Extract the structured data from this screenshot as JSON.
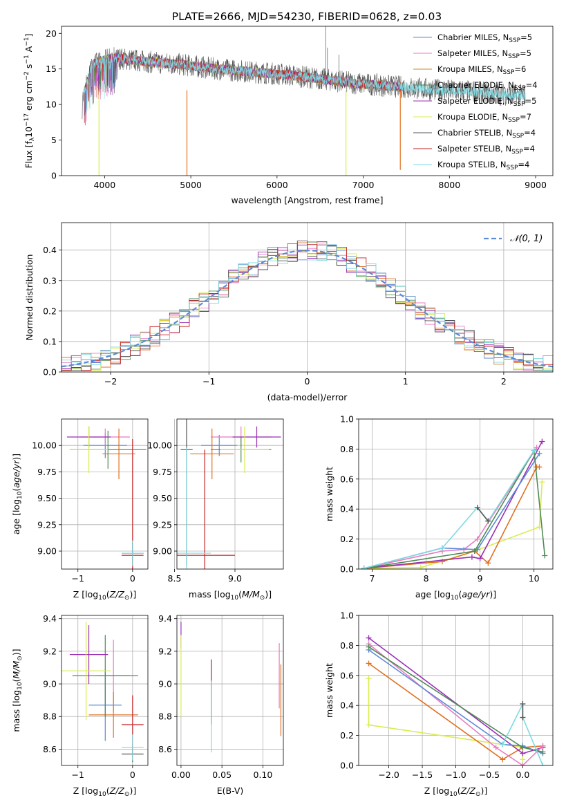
{
  "figure_title": "PLATE=2666, MJD=54230, FIBERID=0628, z=0.03",
  "colors": {
    "chabrier_miles": "#5b8ad6",
    "salpeter_miles": "#e87bc1",
    "kroupa_miles": "#c98a2a",
    "chabrier_elodie": "#4f8a56",
    "salpeter_elodie": "#9a2fb5",
    "kroupa_elodie": "#d9ec4e",
    "chabrier_stelib": "#555555",
    "salpeter_stelib": "#c61f1f",
    "kroupa_stelib": "#7fd9e0",
    "orange": "#e07020",
    "grid": "#b0b0b0"
  },
  "chart_data": [
    {
      "id": "spectrum",
      "type": "line",
      "title": "PLATE=2666, MJD=54230, FIBERID=0628, z=0.03",
      "xlabel": "wavelength [Angstrom, rest frame]",
      "ylabel": "Flux [f",
      "ylabel_full": "Flux [fλ10⁻¹⁷ erg cm⁻² s⁻¹ A⁻¹]",
      "xlim": [
        3500,
        9200
      ],
      "ylim": [
        0,
        21
      ],
      "xticks": [
        4000,
        5000,
        6000,
        7000,
        8000,
        9000
      ],
      "yticks": [
        0,
        5,
        10,
        15,
        20
      ],
      "grid": false,
      "legend_position": "top-right",
      "legend": [
        {
          "name": "Chabrier MILES, N",
          "sub": "SSP",
          "val": "=5",
          "color": "#5b8ad6"
        },
        {
          "name": "Salpeter MILES, N",
          "sub": "SSP",
          "val": "=5",
          "color": "#e87bc1"
        },
        {
          "name": "Kroupa MILES, N",
          "sub": "SSP",
          "val": "=6",
          "color": "#c98a2a"
        },
        {
          "name": "Chabrier ELODIE, N",
          "sub": "SSP",
          "val": "=4",
          "color": "#4f8a56"
        },
        {
          "name": "Salpeter ELODIE, N",
          "sub": "SSP",
          "val": "=5",
          "color": "#9a2fb5"
        },
        {
          "name": "Kroupa ELODIE, N",
          "sub": "SSP",
          "val": "=7",
          "color": "#d9ec4e"
        },
        {
          "name": "Chabrier STELIB, N",
          "sub": "SSP",
          "val": "=4",
          "color": "#555555"
        },
        {
          "name": "Salpeter STELIB, N",
          "sub": "SSP",
          "val": "=4",
          "color": "#c61f1f"
        },
        {
          "name": "Kroupa STELIB, N",
          "sub": "SSP",
          "val": "=4",
          "color": "#7fd9e0"
        }
      ],
      "series_envelope": {
        "x": [
          3750,
          3850,
          3950,
          4050,
          4150,
          4300,
          4500,
          4700,
          4900,
          5100,
          5300,
          5500,
          5700,
          5900,
          6100,
          6300,
          6500,
          6700,
          6900,
          7100,
          7300,
          7500,
          7700,
          7900,
          8100,
          8300,
          8500,
          8700,
          8900,
          9000
        ],
        "y": [
          11.0,
          15.5,
          16.0,
          16.5,
          16.5,
          16.3,
          16.0,
          15.8,
          15.6,
          15.3,
          15.0,
          14.8,
          14.6,
          14.4,
          14.2,
          13.9,
          13.6,
          13.3,
          13.0,
          12.8,
          12.6,
          12.4,
          12.2,
          12.0,
          11.9,
          11.8,
          11.5,
          11.4,
          11.3,
          11.2
        ]
      },
      "dips": [
        {
          "x": 3935,
          "y": 0,
          "color": "#d9ec4e"
        },
        {
          "x": 4955,
          "y": 0,
          "color": "#e07020"
        },
        {
          "x": 6800,
          "y": 0,
          "color": "#d9ec4e"
        },
        {
          "x": 7430,
          "y": 0.8,
          "color": "#e07020"
        }
      ]
    },
    {
      "id": "residuals",
      "type": "line",
      "xlabel": "(data-model)/error",
      "ylabel": "Normed distribution",
      "xlim": [
        -2.5,
        2.5
      ],
      "ylim": [
        0,
        0.49
      ],
      "xticks": [
        -2,
        -1,
        0,
        1,
        2
      ],
      "yticks": [
        0.0,
        0.1,
        0.2,
        0.3,
        0.4
      ],
      "grid": true,
      "legend_position": "top-right",
      "legend": [
        {
          "name": "𝒩(0, 1)",
          "color": "#5b8ad6",
          "dashed": true
        }
      ],
      "normal_pdf": {
        "mu": 0,
        "sigma": 1
      }
    },
    {
      "id": "age_vs_Z",
      "type": "scatter",
      "xlabel": "Z [log",
      "xlabel_full": "Z [log10(Z/Z⊙)]",
      "ylabel": "age  [log",
      "ylabel_full": "age  [log10(age/yr)]",
      "xlim": [
        -1.3,
        0.28
      ],
      "ylim": [
        8.83,
        10.25
      ],
      "xticks": [
        -1,
        0
      ],
      "yticks": [
        9.0,
        9.25,
        9.5,
        9.75,
        10.0
      ],
      "grid": true,
      "points": [
        {
          "x": -0.5,
          "y": 10.0,
          "xerr": 0.4,
          "yerr": 0.12,
          "color": "#5b8ad6"
        },
        {
          "x": -0.5,
          "y": 10.08,
          "xerr": 0.45,
          "yerr": 0.08,
          "color": "#e87bc1"
        },
        {
          "x": -0.25,
          "y": 9.92,
          "xerr": 0.3,
          "yerr": 0.24,
          "color": "#e07020"
        },
        {
          "x": -0.45,
          "y": 9.96,
          "xerr": 0.7,
          "yerr": 0.18,
          "color": "#4f8a56"
        },
        {
          "x": -0.8,
          "y": 10.08,
          "xerr": 0.4,
          "yerr": 0.1,
          "color": "#9a2fb5"
        },
        {
          "x": -0.8,
          "y": 9.96,
          "xerr": 0.35,
          "yerr": 0.22,
          "color": "#d9ec4e"
        },
        {
          "x": 0.0,
          "y": 8.98,
          "xerr": 0.2,
          "yerr": 0.1,
          "color": "#555555"
        },
        {
          "x": 0.0,
          "y": 8.96,
          "xerr": 0.2,
          "yerr": 1.1,
          "color": "#c61f1f"
        },
        {
          "x": 0.0,
          "y": 8.98,
          "xerr": 0.2,
          "yerr": 0.12,
          "color": "#7fd9e0"
        }
      ]
    },
    {
      "id": "age_vs_mass",
      "type": "scatter",
      "xlabel": "mass [log",
      "xlabel_full": "mass [log10(M/M⊙)]",
      "xlim": [
        8.52,
        9.4
      ],
      "ylim": [
        8.83,
        10.25
      ],
      "xticks": [
        8.5,
        9.0
      ],
      "yticks": [
        9.0,
        9.25,
        9.5,
        9.75,
        10.0
      ],
      "grid": true,
      "points": [
        {
          "x": 8.87,
          "y": 10.0,
          "xerr": 0.15,
          "yerr": 0.1,
          "color": "#5b8ad6"
        },
        {
          "x": 9.05,
          "y": 10.08,
          "xerr": 0.25,
          "yerr": 0.1,
          "color": "#e87bc1"
        },
        {
          "x": 8.81,
          "y": 9.92,
          "xerr": 0.18,
          "yerr": 0.24,
          "color": "#e07020"
        },
        {
          "x": 9.05,
          "y": 9.96,
          "xerr": 0.25,
          "yerr": 0.12,
          "color": "#4f8a56"
        },
        {
          "x": 9.18,
          "y": 10.08,
          "xerr": 0.2,
          "yerr": 0.1,
          "color": "#9a2fb5"
        },
        {
          "x": 9.08,
          "y": 9.96,
          "xerr": 0.2,
          "yerr": 0.22,
          "color": "#d9ec4e"
        },
        {
          "x": 8.6,
          "y": 9.96,
          "xerr": 0.05,
          "yerr": 1.1,
          "color": "#555555"
        },
        {
          "x": 8.75,
          "y": 8.96,
          "xerr": 0.25,
          "yerr": 1.0,
          "color": "#c61f1f"
        },
        {
          "x": 8.6,
          "y": 8.98,
          "xerr": 0.2,
          "yerr": 1.0,
          "color": "#7fd9e0"
        }
      ]
    },
    {
      "id": "massweight_vs_age",
      "type": "line",
      "xlabel": "age  [log",
      "xlabel_full": "age  [log10(age/yr)]",
      "ylabel": "mass weight",
      "xlim": [
        6.75,
        10.35
      ],
      "ylim": [
        0,
        1.0
      ],
      "xticks": [
        7,
        8,
        9,
        10
      ],
      "yticks": [
        0.0,
        0.2,
        0.4,
        0.6,
        0.8,
        1.0
      ],
      "grid": true,
      "series": [
        {
          "color": "#d9ec4e",
          "x": [
            6.85,
            7.9,
            8.9,
            10.1,
            10.15
          ],
          "y": [
            0.005,
            0.01,
            0.12,
            0.28,
            0.58
          ]
        },
        {
          "color": "#e07020",
          "x": [
            6.85,
            8.3,
            8.9,
            9.15,
            10.05,
            10.1
          ],
          "y": [
            0.005,
            0.05,
            0.12,
            0.04,
            0.68,
            0.68
          ]
        },
        {
          "color": "#9a2fb5",
          "x": [
            6.85,
            8.85,
            9.0,
            10.15
          ],
          "y": [
            0.005,
            0.08,
            0.07,
            0.85
          ]
        },
        {
          "color": "#e87bc1",
          "x": [
            6.85,
            8.3,
            8.7,
            8.95,
            10.05
          ],
          "y": [
            0.005,
            0.12,
            0.13,
            0.2,
            0.81
          ]
        },
        {
          "color": "#5b8ad6",
          "x": [
            6.85,
            8.3,
            8.95,
            10.1
          ],
          "y": [
            0.005,
            0.14,
            0.13,
            0.77
          ]
        },
        {
          "color": "#4f8a56",
          "x": [
            6.85,
            8.9,
            10.0,
            10.2
          ],
          "y": [
            0.005,
            0.12,
            0.79,
            0.09
          ]
        },
        {
          "color": "#7fd9e0",
          "x": [
            6.85,
            8.3,
            8.95,
            9.15,
            10.0
          ],
          "y": [
            0.005,
            0.14,
            0.41,
            0.32,
            0.79
          ]
        },
        {
          "color": "#555555",
          "x": [
            8.95,
            9.15
          ],
          "y": [
            0.41,
            0.32
          ]
        }
      ]
    },
    {
      "id": "mass_vs_Z",
      "type": "scatter",
      "xlabel": "Z [log",
      "xlabel_full": "Z [log10(Z/Z⊙)]",
      "ylabel": "mass [log",
      "ylabel_full": "mass [log10(M/M⊙)]",
      "xlim": [
        -1.3,
        0.28
      ],
      "ylim": [
        8.5,
        9.42
      ],
      "xticks": [
        -1,
        0
      ],
      "yticks": [
        8.6,
        8.8,
        9.0,
        9.2,
        9.4
      ],
      "grid": true,
      "points": [
        {
          "x": -0.5,
          "y": 8.87,
          "xerr": 0.3,
          "yerr": 0.22,
          "color": "#5b8ad6"
        },
        {
          "x": -0.35,
          "y": 9.05,
          "xerr": 0.3,
          "yerr": 0.22,
          "color": "#e87bc1"
        },
        {
          "x": -0.35,
          "y": 8.81,
          "xerr": 0.45,
          "yerr": 0.14,
          "color": "#e07020"
        },
        {
          "x": -0.5,
          "y": 9.05,
          "xerr": 0.6,
          "yerr": 0.25,
          "color": "#4f8a56"
        },
        {
          "x": -0.8,
          "y": 9.18,
          "xerr": 0.35,
          "yerr": 0.18,
          "color": "#9a2fb5"
        },
        {
          "x": -0.85,
          "y": 9.08,
          "xerr": 0.45,
          "yerr": 0.3,
          "color": "#d9ec4e"
        },
        {
          "x": 0.0,
          "y": 8.57,
          "xerr": 0.2,
          "yerr": 0.05,
          "color": "#555555"
        },
        {
          "x": 0.0,
          "y": 8.75,
          "xerr": 0.2,
          "yerr": 0.18,
          "color": "#c61f1f"
        },
        {
          "x": 0.0,
          "y": 8.61,
          "xerr": 0.2,
          "yerr": 0.08,
          "color": "#7fd9e0"
        }
      ]
    },
    {
      "id": "mass_vs_EBV",
      "type": "scatter",
      "xlabel": "E(B-V)",
      "xlim": [
        -0.005,
        0.125
      ],
      "ylim": [
        8.5,
        9.42
      ],
      "xticks": [
        0.0,
        0.05,
        0.1
      ],
      "xticklabels": [
        "0.00",
        "0.05",
        "0.10"
      ],
      "yticks": [
        8.6,
        8.8,
        9.0,
        9.2,
        9.4
      ],
      "grid": true,
      "points": [
        {
          "x": 0.0,
          "y": 9.3,
          "yerr": 0.08,
          "color": "#9a2fb5"
        },
        {
          "x": 0.0,
          "y": 9.05,
          "yerr": 0.25,
          "color": "#d9ec4e"
        },
        {
          "x": 0.037,
          "y": 8.95,
          "yerr": 0.2,
          "color": "#c61f1f"
        },
        {
          "x": 0.037,
          "y": 8.8,
          "yerr": 0.22,
          "color": "#7fd9e0"
        },
        {
          "x": 0.12,
          "y": 9.05,
          "yerr": 0.2,
          "color": "#e87bc1"
        },
        {
          "x": 0.122,
          "y": 8.9,
          "yerr": 0.22,
          "color": "#e07020"
        }
      ]
    },
    {
      "id": "massweight_vs_Z",
      "type": "line",
      "xlabel": "Z [log",
      "xlabel_full": "Z [log10(Z/Z⊙)]",
      "ylabel": "mass weight",
      "xlim": [
        -2.45,
        0.45
      ],
      "ylim": [
        0,
        1.0
      ],
      "xticks": [
        -2.0,
        -1.5,
        -1.0,
        -0.5,
        0.0
      ],
      "xticklabels": [
        "−2.0",
        "−1.5",
        "−1.0",
        "−0.5",
        "0.0"
      ],
      "yticks": [
        0.0,
        0.2,
        0.4,
        0.6,
        0.8,
        1.0
      ],
      "grid": true,
      "series": [
        {
          "color": "#d9ec4e",
          "x": [
            -2.3,
            -2.3,
            0.0,
            0.0
          ],
          "y": [
            0.58,
            0.27,
            0.12,
            0.04
          ]
        },
        {
          "color": "#e07020",
          "x": [
            -2.3,
            -0.3,
            0.0,
            0.3
          ],
          "y": [
            0.68,
            0.04,
            0.12,
            0.13
          ]
        },
        {
          "color": "#9a2fb5",
          "x": [
            -2.3,
            0.0,
            0.3
          ],
          "y": [
            0.85,
            0.08,
            0.12
          ]
        },
        {
          "color": "#e87bc1",
          "x": [
            -2.3,
            -0.4,
            0.0,
            0.3
          ],
          "y": [
            0.81,
            0.12,
            0.0,
            0.13
          ]
        },
        {
          "color": "#5b8ad6",
          "x": [
            -2.3,
            -0.3,
            0.0,
            0.3
          ],
          "y": [
            0.77,
            0.14,
            0.13,
            0.08
          ]
        },
        {
          "color": "#4f8a56",
          "x": [
            -2.3,
            0.0,
            0.3
          ],
          "y": [
            0.79,
            0.12,
            0.09
          ]
        },
        {
          "color": "#7fd9e0",
          "x": [
            -0.3,
            0.0,
            0.0,
            0.3
          ],
          "y": [
            0.14,
            0.41,
            0.32,
            0.0
          ]
        },
        {
          "color": "#555555",
          "x": [
            0.0,
            0.0
          ],
          "y": [
            0.41,
            0.32
          ]
        }
      ]
    }
  ]
}
